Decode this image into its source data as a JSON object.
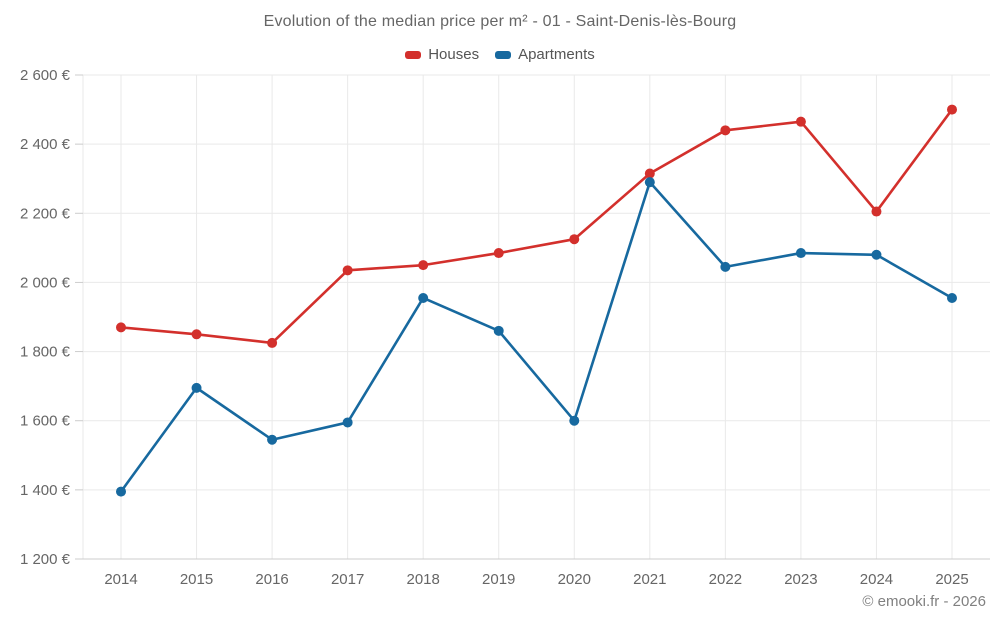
{
  "header": {
    "title": "Evolution of the median price per m² - 01 - Saint-Denis-lès-Bourg"
  },
  "footer": {
    "credit": "© emooki.fr - 2026"
  },
  "chart_data": {
    "type": "line",
    "title": "Evolution of the median price per m² - 01 - Saint-Denis-lès-Bourg",
    "x": [
      "2014",
      "2015",
      "2016",
      "2017",
      "2018",
      "2019",
      "2020",
      "2021",
      "2022",
      "2023",
      "2024",
      "2025"
    ],
    "series": [
      {
        "name": "Houses",
        "color": "#d3302c",
        "values": [
          1870,
          1850,
          1825,
          2035,
          2050,
          2085,
          2125,
          2315,
          2440,
          2465,
          2205,
          2500
        ]
      },
      {
        "name": "Apartments",
        "color": "#17699f",
        "values": [
          1395,
          1695,
          1545,
          1595,
          1955,
          1860,
          1600,
          2290,
          2045,
          2085,
          2080,
          1955
        ]
      }
    ],
    "ylim": [
      1200,
      2600
    ],
    "y_ticks": [
      {
        "value": 2600,
        "label": "2 600 €"
      },
      {
        "value": 2400,
        "label": "2 400 €"
      },
      {
        "value": 2200,
        "label": "2 200 €"
      },
      {
        "value": 2000,
        "label": "2 000 €"
      },
      {
        "value": 1800,
        "label": "1 800 €"
      },
      {
        "value": 1600,
        "label": "1 600 €"
      },
      {
        "value": 1400,
        "label": "1 400 €"
      },
      {
        "value": 1200,
        "label": "1 200 €"
      }
    ],
    "grid": true,
    "legend_position": "top",
    "marker": "circle",
    "currency_suffix": "€"
  }
}
